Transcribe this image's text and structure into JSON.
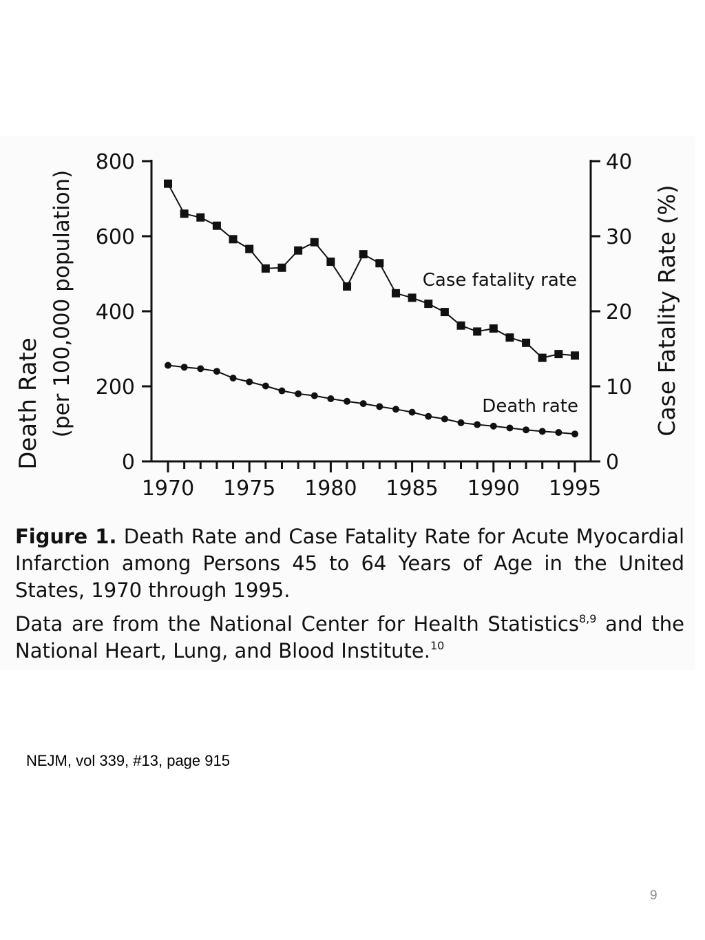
{
  "chart_data": {
    "type": "line",
    "x": [
      1970,
      1971,
      1972,
      1973,
      1974,
      1975,
      1976,
      1977,
      1978,
      1979,
      1980,
      1981,
      1982,
      1983,
      1984,
      1985,
      1986,
      1987,
      1988,
      1989,
      1990,
      1991,
      1992,
      1993,
      1994,
      1995
    ],
    "series": [
      {
        "name": "Case fatality rate",
        "axis": "right",
        "marker": "square",
        "values": [
          37.0,
          33.0,
          32.5,
          31.4,
          29.6,
          28.3,
          25.7,
          25.8,
          28.1,
          29.2,
          26.6,
          23.3,
          27.6,
          26.4,
          22.4,
          21.8,
          21.0,
          19.9,
          18.1,
          17.3,
          17.7,
          16.5,
          15.8,
          13.8,
          14.3,
          14.1
        ]
      },
      {
        "name": "Death rate",
        "axis": "left",
        "marker": "circle",
        "values": [
          256,
          251,
          247,
          240,
          222,
          212,
          201,
          188,
          180,
          175,
          167,
          160,
          154,
          146,
          139,
          131,
          120,
          113,
          103,
          98,
          94,
          89,
          84,
          80,
          77,
          73
        ]
      }
    ],
    "ylabel": "Death Rate",
    "ylabel_sub": "(per 100,000 population)",
    "ylim": [
      0,
      800
    ],
    "yticks": [
      "0",
      "200",
      "400",
      "600",
      "800"
    ],
    "y2label": "Case Fatality Rate (%)",
    "y2lim": [
      0,
      40
    ],
    "y2ticks": [
      "0",
      "10",
      "20",
      "30",
      "40"
    ],
    "xlim": [
      1970,
      1995
    ],
    "xticks": [
      "1970",
      "1975",
      "1980",
      "1985",
      "1990",
      "1995"
    ],
    "grid": false
  },
  "caption": {
    "figure_label": "Figure 1.",
    "title": "Death Rate and Case Fatality Rate for Acute Myocardial Infarction among Persons 45 to 64 Years of Age in the United States, 1970 through 1995.",
    "note_text": "Data are from the National Center for Health Statistics",
    "note_sup1": "8,9",
    "note_text2": "and the National Heart, Lung, and Blood Institute.",
    "note_sup2": "10"
  },
  "source": "NEJM, vol 339, #13, page 915",
  "page_number": "9"
}
